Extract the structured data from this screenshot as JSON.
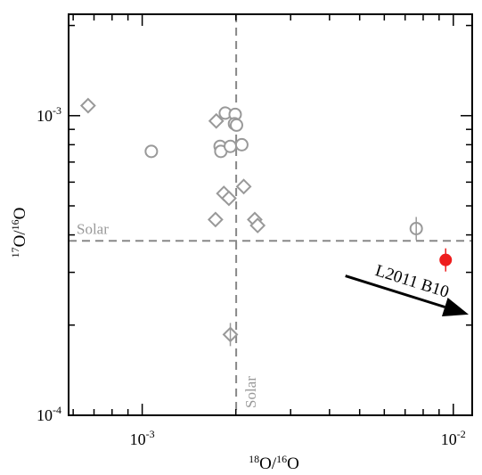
{
  "chart_data": {
    "type": "scatter",
    "x_scale": "log",
    "y_scale": "log",
    "xlim": [
      0.00058,
      0.0115
    ],
    "ylim": [
      0.0001,
      0.00218
    ],
    "xlabel": {
      "sup": "18",
      "base": "O/",
      "sup2": "16",
      "tail": "O"
    },
    "ylabel": {
      "sup": "17",
      "base": "O/",
      "sup2": "16",
      "tail": "O"
    },
    "x_ticks": [
      {
        "value": 0.001,
        "label_base": "10",
        "label_exp": "-3"
      },
      {
        "value": 0.01,
        "label_base": "10",
        "label_exp": "-2"
      }
    ],
    "y_ticks": [
      {
        "value": 0.0001,
        "label_base": "10",
        "label_exp": "-4"
      },
      {
        "value": 0.001,
        "label_base": "10",
        "label_exp": "-3"
      }
    ],
    "reference_lines": {
      "solar_x": 0.002005,
      "solar_y": 0.000382,
      "label_h": "Solar",
      "label_v": "Solar"
    },
    "series": [
      {
        "marker": "circle",
        "color": "#999999",
        "filled": false,
        "points": [
          {
            "x": 0.00107,
            "y": 0.00076
          },
          {
            "x": 0.00185,
            "y": 0.00102
          },
          {
            "x": 0.00199,
            "y": 0.00101
          },
          {
            "x": 0.00198,
            "y": 0.00094
          },
          {
            "x": 0.00201,
            "y": 0.00093
          },
          {
            "x": 0.00178,
            "y": 0.00079
          },
          {
            "x": 0.00179,
            "y": 0.00076
          },
          {
            "x": 0.00192,
            "y": 0.00079
          },
          {
            "x": 0.00209,
            "y": 0.0008
          },
          {
            "x": 0.0076,
            "y": 0.00042
          }
        ]
      },
      {
        "marker": "diamond",
        "color": "#999999",
        "filled": false,
        "points": [
          {
            "x": 0.00067,
            "y": 0.00108
          },
          {
            "x": 0.00173,
            "y": 0.00096
          },
          {
            "x": 0.00183,
            "y": 0.00055
          },
          {
            "x": 0.0019,
            "y": 0.00053
          },
          {
            "x": 0.00212,
            "y": 0.00058
          },
          {
            "x": 0.00172,
            "y": 0.00045
          },
          {
            "x": 0.0023,
            "y": 0.00045
          },
          {
            "x": 0.00235,
            "y": 0.00043
          },
          {
            "x": 0.00192,
            "y": 0.000186
          }
        ]
      },
      {
        "marker": "circle",
        "color": "#ee1c1c",
        "filled": true,
        "points": [
          {
            "x": 0.00945,
            "y": 0.00033
          }
        ]
      }
    ],
    "annotation": {
      "text": "L2011 B10",
      "arrow_from": {
        "x": 0.0045,
        "y": 0.000292
      },
      "arrow_to": {
        "x": 0.0112,
        "y": 0.000217
      }
    }
  }
}
